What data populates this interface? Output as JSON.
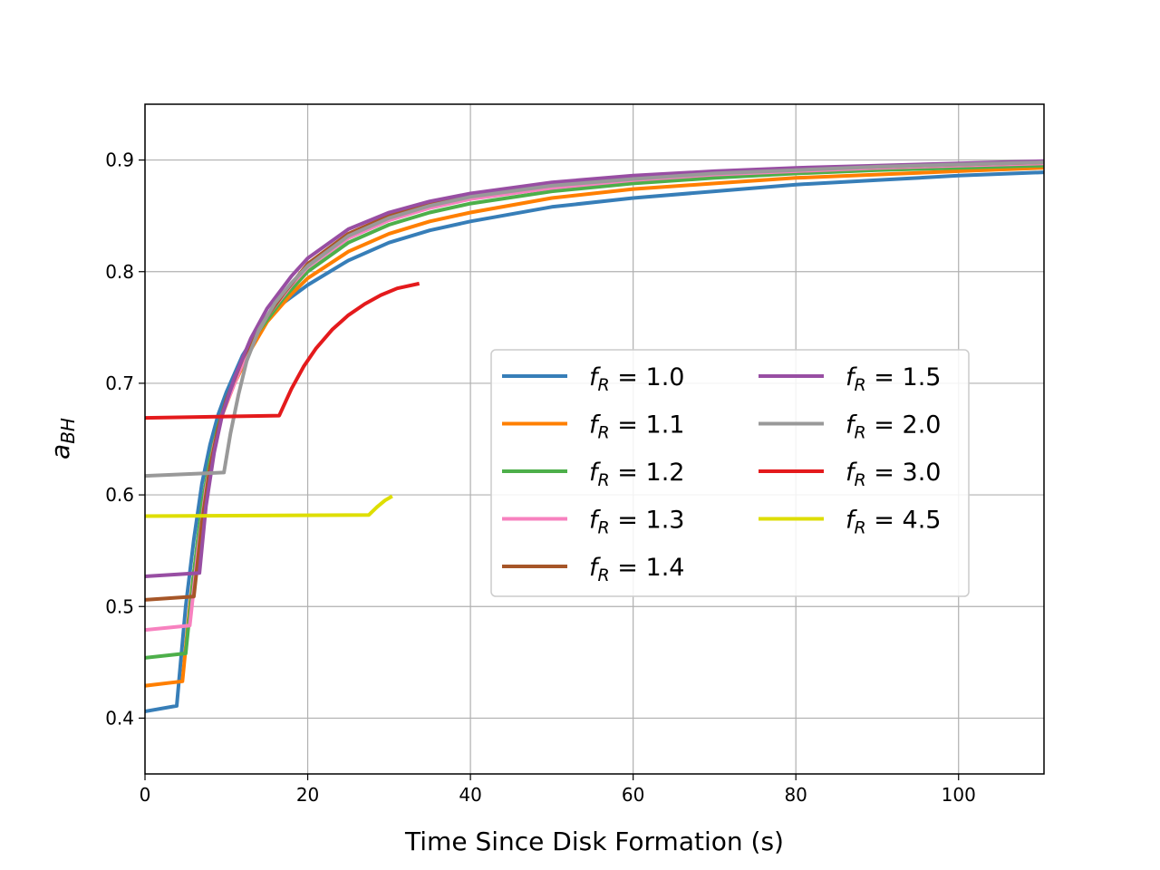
{
  "chart_data": {
    "type": "line",
    "title": "",
    "xlabel": "Time Since Disk Formation (s)",
    "ylabel": {
      "base": "a",
      "sub": "BH"
    },
    "xlim": [
      0,
      110.5
    ],
    "ylim": [
      0.35,
      0.95
    ],
    "xticks": [
      0,
      20,
      40,
      60,
      80,
      100
    ],
    "xtick_labels": [
      "0",
      "20",
      "40",
      "60",
      "80",
      "100"
    ],
    "yticks": [
      0.4,
      0.5,
      0.6,
      0.7,
      0.8,
      0.9
    ],
    "ytick_labels": [
      "0.4",
      "0.5",
      "0.6",
      "0.7",
      "0.8",
      "0.9"
    ],
    "grid": true,
    "legend": {
      "placement": "center-right",
      "columns": 2
    },
    "series": [
      {
        "name": "1.0",
        "color": "#377eb8",
        "points": [
          [
            0,
            0.406
          ],
          [
            3.9,
            0.411
          ],
          [
            5,
            0.5
          ],
          [
            6,
            0.56
          ],
          [
            7,
            0.61
          ],
          [
            8,
            0.645
          ],
          [
            9,
            0.672
          ],
          [
            10,
            0.692
          ],
          [
            12,
            0.725
          ],
          [
            14,
            0.748
          ],
          [
            17,
            0.772
          ],
          [
            20,
            0.788
          ],
          [
            25,
            0.81
          ],
          [
            30,
            0.826
          ],
          [
            35,
            0.837
          ],
          [
            40,
            0.845
          ],
          [
            50,
            0.858
          ],
          [
            60,
            0.866
          ],
          [
            70,
            0.872
          ],
          [
            80,
            0.878
          ],
          [
            90,
            0.882
          ],
          [
            100,
            0.886
          ],
          [
            110.5,
            0.889
          ]
        ]
      },
      {
        "name": "1.1",
        "color": "#ff7f00",
        "points": [
          [
            0,
            0.429
          ],
          [
            4.6,
            0.433
          ],
          [
            5.5,
            0.5
          ],
          [
            6.5,
            0.56
          ],
          [
            7.5,
            0.61
          ],
          [
            8.5,
            0.645
          ],
          [
            9.5,
            0.672
          ],
          [
            11,
            0.7
          ],
          [
            13,
            0.73
          ],
          [
            15,
            0.755
          ],
          [
            18,
            0.78
          ],
          [
            20,
            0.794
          ],
          [
            25,
            0.818
          ],
          [
            30,
            0.834
          ],
          [
            35,
            0.845
          ],
          [
            40,
            0.853
          ],
          [
            50,
            0.866
          ],
          [
            60,
            0.874
          ],
          [
            70,
            0.879
          ],
          [
            80,
            0.884
          ],
          [
            90,
            0.887
          ],
          [
            100,
            0.89
          ],
          [
            110.5,
            0.893
          ]
        ]
      },
      {
        "name": "1.2",
        "color": "#4daf4a",
        "points": [
          [
            0,
            0.454
          ],
          [
            5,
            0.458
          ],
          [
            6,
            0.53
          ],
          [
            7,
            0.59
          ],
          [
            8,
            0.632
          ],
          [
            9,
            0.662
          ],
          [
            10,
            0.685
          ],
          [
            12,
            0.72
          ],
          [
            14,
            0.747
          ],
          [
            17,
            0.776
          ],
          [
            20,
            0.8
          ],
          [
            25,
            0.826
          ],
          [
            30,
            0.842
          ],
          [
            35,
            0.853
          ],
          [
            40,
            0.861
          ],
          [
            50,
            0.872
          ],
          [
            60,
            0.879
          ],
          [
            70,
            0.884
          ],
          [
            80,
            0.888
          ],
          [
            90,
            0.891
          ],
          [
            100,
            0.893
          ],
          [
            110.5,
            0.895
          ]
        ]
      },
      {
        "name": "1.3",
        "color": "#f781bf",
        "points": [
          [
            0,
            0.479
          ],
          [
            5.5,
            0.483
          ],
          [
            6.5,
            0.55
          ],
          [
            7.5,
            0.605
          ],
          [
            8.5,
            0.645
          ],
          [
            9.5,
            0.673
          ],
          [
            11,
            0.7
          ],
          [
            13,
            0.735
          ],
          [
            15,
            0.76
          ],
          [
            18,
            0.788
          ],
          [
            20,
            0.804
          ],
          [
            25,
            0.83
          ],
          [
            30,
            0.846
          ],
          [
            35,
            0.857
          ],
          [
            40,
            0.865
          ],
          [
            50,
            0.875
          ],
          [
            60,
            0.882
          ],
          [
            70,
            0.887
          ],
          [
            80,
            0.89
          ],
          [
            90,
            0.893
          ],
          [
            100,
            0.895
          ],
          [
            110.5,
            0.897
          ]
        ]
      },
      {
        "name": "1.4",
        "color": "#a65628",
        "points": [
          [
            0,
            0.506
          ],
          [
            6,
            0.509
          ],
          [
            7,
            0.575
          ],
          [
            8,
            0.625
          ],
          [
            9,
            0.66
          ],
          [
            10,
            0.685
          ],
          [
            12,
            0.722
          ],
          [
            14,
            0.75
          ],
          [
            17,
            0.78
          ],
          [
            20,
            0.807
          ],
          [
            25,
            0.834
          ],
          [
            30,
            0.85
          ],
          [
            35,
            0.861
          ],
          [
            40,
            0.868
          ],
          [
            50,
            0.878
          ],
          [
            60,
            0.884
          ],
          [
            70,
            0.889
          ],
          [
            80,
            0.892
          ],
          [
            90,
            0.894
          ],
          [
            100,
            0.896
          ],
          [
            110.5,
            0.898
          ]
        ]
      },
      {
        "name": "1.5",
        "color": "#984ea3",
        "points": [
          [
            0,
            0.527
          ],
          [
            6.7,
            0.53
          ],
          [
            7.5,
            0.59
          ],
          [
            8.5,
            0.638
          ],
          [
            9.5,
            0.672
          ],
          [
            11,
            0.705
          ],
          [
            13,
            0.74
          ],
          [
            15,
            0.767
          ],
          [
            18,
            0.796
          ],
          [
            20,
            0.812
          ],
          [
            25,
            0.838
          ],
          [
            30,
            0.853
          ],
          [
            35,
            0.863
          ],
          [
            40,
            0.87
          ],
          [
            50,
            0.88
          ],
          [
            60,
            0.886
          ],
          [
            70,
            0.89
          ],
          [
            80,
            0.893
          ],
          [
            90,
            0.895
          ],
          [
            100,
            0.897
          ],
          [
            110.5,
            0.899
          ]
        ]
      },
      {
        "name": "2.0",
        "color": "#999999",
        "points": [
          [
            0,
            0.617
          ],
          [
            9.7,
            0.62
          ],
          [
            10.5,
            0.655
          ],
          [
            11.5,
            0.69
          ],
          [
            12.5,
            0.72
          ],
          [
            14,
            0.748
          ],
          [
            16,
            0.772
          ],
          [
            18,
            0.79
          ],
          [
            20,
            0.805
          ],
          [
            25,
            0.832
          ],
          [
            30,
            0.848
          ],
          [
            35,
            0.859
          ],
          [
            40,
            0.867
          ],
          [
            50,
            0.877
          ],
          [
            60,
            0.883
          ],
          [
            70,
            0.888
          ],
          [
            80,
            0.891
          ],
          [
            90,
            0.894
          ],
          [
            100,
            0.896
          ],
          [
            110.5,
            0.898
          ]
        ]
      },
      {
        "name": "3.0",
        "color": "#e41a1c",
        "points": [
          [
            0,
            0.669
          ],
          [
            16.5,
            0.671
          ],
          [
            18,
            0.695
          ],
          [
            19.5,
            0.715
          ],
          [
            21,
            0.731
          ],
          [
            23,
            0.748
          ],
          [
            25,
            0.761
          ],
          [
            27,
            0.771
          ],
          [
            29,
            0.779
          ],
          [
            31,
            0.785
          ],
          [
            33.5,
            0.789
          ]
        ]
      },
      {
        "name": "4.5",
        "color": "#dede00",
        "points": [
          [
            0,
            0.581
          ],
          [
            27.5,
            0.582
          ],
          [
            28.5,
            0.589
          ],
          [
            29.5,
            0.595
          ],
          [
            30.2,
            0.598
          ]
        ]
      }
    ]
  }
}
